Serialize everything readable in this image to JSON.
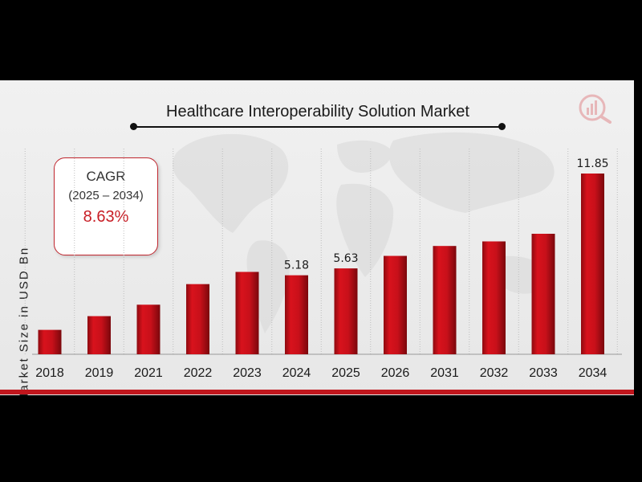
{
  "chart_data": {
    "type": "bar",
    "title": "Healthcare Interoperability Solution Market",
    "ylabel": "Market Size in USD Bn",
    "xlabel": "",
    "categories": [
      "2018",
      "2019",
      "2021",
      "2022",
      "2023",
      "2024",
      "2025",
      "2026",
      "2031",
      "2032",
      "2033",
      "2034"
    ],
    "values": [
      1.6,
      2.5,
      3.25,
      4.6,
      5.4,
      5.18,
      5.63,
      6.45,
      7.1,
      7.4,
      7.9,
      11.85
    ],
    "data_labels": [
      {
        "category": "2024",
        "text": "5.18"
      },
      {
        "category": "2025",
        "text": "5.63"
      },
      {
        "category": "2034",
        "text": "11.85"
      }
    ],
    "bar_color": "#c8101a",
    "grid": false,
    "legend": "none"
  },
  "cagr": {
    "label": "CAGR",
    "period": "(2025 – 2034)",
    "value": "8.63%"
  },
  "colors": {
    "accent": "#c0161d",
    "background": "#ececec"
  },
  "logo_icon": "mrfr-chart-logo-icon"
}
